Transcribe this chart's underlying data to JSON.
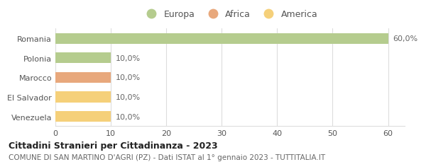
{
  "categories": [
    "Romania",
    "Polonia",
    "Marocco",
    "El Salvador",
    "Venezuela"
  ],
  "values": [
    60.0,
    10.0,
    10.0,
    10.0,
    10.0
  ],
  "colors": [
    "#b5cc8e",
    "#b5cc8e",
    "#e8a87c",
    "#f5d07a",
    "#f5d07a"
  ],
  "labels": [
    "60,0%",
    "10,0%",
    "10,0%",
    "10,0%",
    "10,0%"
  ],
  "legend": [
    {
      "label": "Europa",
      "color": "#b5cc8e"
    },
    {
      "label": "Africa",
      "color": "#e8a87c"
    },
    {
      "label": "America",
      "color": "#f5d07a"
    }
  ],
  "xlim": [
    0,
    63
  ],
  "xticks": [
    0,
    10,
    20,
    30,
    40,
    50,
    60
  ],
  "title": "Cittadini Stranieri per Cittadinanza - 2023",
  "subtitle": "COMUNE DI SAN MARTINO D'AGRI (PZ) - Dati ISTAT al 1° gennaio 2023 - TUTTITALIA.IT",
  "bg_color": "#ffffff",
  "grid_color": "#dddddd",
  "bar_height": 0.55,
  "title_fontsize": 9,
  "subtitle_fontsize": 7.5,
  "label_fontsize": 8,
  "tick_fontsize": 8,
  "legend_fontsize": 9
}
